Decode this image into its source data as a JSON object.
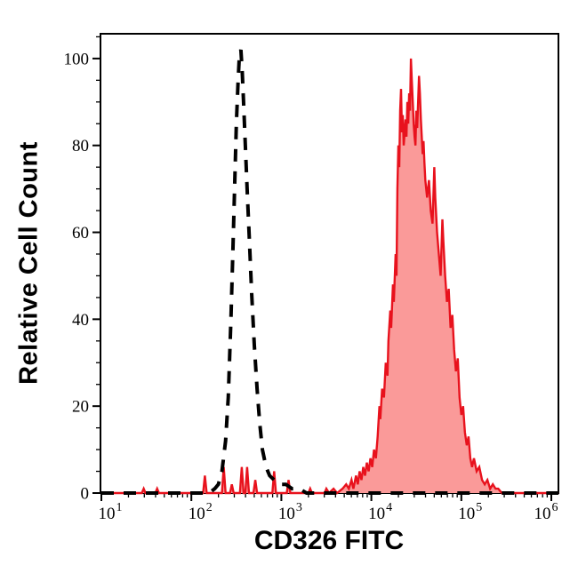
{
  "figure": {
    "ylabel": "Relative Cell Count",
    "xlabel": "CD326 FITC"
  },
  "colors": {
    "background": "#ffffff",
    "frame": "#000000",
    "dashed_curve": "#000000",
    "red_stroke": "#e8121d",
    "red_fill": "#fa9a99"
  },
  "chart_data": {
    "type": "area",
    "subtype": "flow-cytometry-histogram-overlay",
    "title": "",
    "xlabel": "CD326 FITC",
    "ylabel": "Relative Cell Count",
    "x_scale": "log",
    "xlim_log": [
      1,
      6.08
    ],
    "ylim": [
      0,
      105.7
    ],
    "grid": false,
    "legend": "none",
    "x_tick_base": "10",
    "x_tick_exponents": [
      1,
      2,
      3,
      4,
      5,
      6
    ],
    "x_minor_tick_mantissas": [
      2,
      3,
      4,
      5,
      6,
      7,
      8,
      9
    ],
    "y_ticks": [
      0,
      20,
      40,
      60,
      80,
      100
    ],
    "y_tick_labels": [
      "0",
      "20",
      "40",
      "60",
      "80",
      "100"
    ],
    "y_minor_step": 5,
    "series": [
      {
        "key": "red_filled",
        "style": "solid",
        "stroke": "#e8121d",
        "fill": "#fa9a99",
        "stroke_width": 2.4,
        "points_logx_y": [
          [
            1.0,
            0
          ],
          [
            1.45,
            0
          ],
          [
            1.47,
            1
          ],
          [
            1.49,
            0
          ],
          [
            1.6,
            0
          ],
          [
            1.62,
            1
          ],
          [
            1.64,
            0
          ],
          [
            2.13,
            0
          ],
          [
            2.15,
            4
          ],
          [
            2.17,
            0
          ],
          [
            2.34,
            0
          ],
          [
            2.36,
            6
          ],
          [
            2.38,
            0
          ],
          [
            2.43,
            0
          ],
          [
            2.45,
            2
          ],
          [
            2.47,
            0
          ],
          [
            2.54,
            0
          ],
          [
            2.56,
            6
          ],
          [
            2.58,
            0
          ],
          [
            2.6,
            0
          ],
          [
            2.62,
            6
          ],
          [
            2.64,
            0
          ],
          [
            2.69,
            0
          ],
          [
            2.71,
            3
          ],
          [
            2.73,
            0
          ],
          [
            2.9,
            0
          ],
          [
            2.92,
            5
          ],
          [
            2.94,
            0
          ],
          [
            3.06,
            0
          ],
          [
            3.08,
            3
          ],
          [
            3.1,
            0
          ],
          [
            3.3,
            0
          ],
          [
            3.32,
            1
          ],
          [
            3.34,
            0
          ],
          [
            3.48,
            0
          ],
          [
            3.5,
            1
          ],
          [
            3.53,
            0
          ],
          [
            3.58,
            1
          ],
          [
            3.62,
            0
          ],
          [
            3.68,
            1
          ],
          [
            3.72,
            2
          ],
          [
            3.75,
            1
          ],
          [
            3.78,
            3
          ],
          [
            3.8,
            1
          ],
          [
            3.83,
            4
          ],
          [
            3.85,
            2
          ],
          [
            3.87,
            5
          ],
          [
            3.89,
            3
          ],
          [
            3.91,
            6
          ],
          [
            3.93,
            4
          ],
          [
            3.95,
            7
          ],
          [
            3.97,
            5
          ],
          [
            3.99,
            8
          ],
          [
            4.01,
            6
          ],
          [
            4.03,
            10
          ],
          [
            4.05,
            8
          ],
          [
            4.07,
            13
          ],
          [
            4.09,
            20
          ],
          [
            4.1,
            17
          ],
          [
            4.12,
            24
          ],
          [
            4.14,
            22
          ],
          [
            4.16,
            30
          ],
          [
            4.18,
            27
          ],
          [
            4.19,
            35
          ],
          [
            4.21,
            42
          ],
          [
            4.22,
            38
          ],
          [
            4.24,
            48
          ],
          [
            4.25,
            44
          ],
          [
            4.27,
            55
          ],
          [
            4.28,
            50
          ],
          [
            4.29,
            70
          ],
          [
            4.3,
            80
          ],
          [
            4.31,
            75
          ],
          [
            4.32,
            88
          ],
          [
            4.33,
            93
          ],
          [
            4.34,
            83
          ],
          [
            4.35,
            87
          ],
          [
            4.36,
            80
          ],
          [
            4.38,
            86
          ],
          [
            4.39,
            82
          ],
          [
            4.4,
            90
          ],
          [
            4.41,
            85
          ],
          [
            4.42,
            92
          ],
          [
            4.43,
            88
          ],
          [
            4.44,
            100
          ],
          [
            4.45,
            95
          ],
          [
            4.46,
            90
          ],
          [
            4.47,
            85
          ],
          [
            4.48,
            82
          ],
          [
            4.49,
            80
          ],
          [
            4.5,
            88
          ],
          [
            4.51,
            84
          ],
          [
            4.52,
            90
          ],
          [
            4.53,
            96
          ],
          [
            4.54,
            92
          ],
          [
            4.55,
            86
          ],
          [
            4.56,
            82
          ],
          [
            4.57,
            78
          ],
          [
            4.58,
            81
          ],
          [
            4.59,
            76
          ],
          [
            4.6,
            72
          ],
          [
            4.62,
            68
          ],
          [
            4.64,
            72
          ],
          [
            4.66,
            65
          ],
          [
            4.68,
            62
          ],
          [
            4.7,
            75
          ],
          [
            4.71,
            68
          ],
          [
            4.73,
            60
          ],
          [
            4.75,
            55
          ],
          [
            4.77,
            50
          ],
          [
            4.79,
            63
          ],
          [
            4.8,
            58
          ],
          [
            4.82,
            50
          ],
          [
            4.84,
            44
          ],
          [
            4.86,
            47
          ],
          [
            4.88,
            38
          ],
          [
            4.9,
            41
          ],
          [
            4.92,
            33
          ],
          [
            4.94,
            28
          ],
          [
            4.96,
            31
          ],
          [
            4.98,
            22
          ],
          [
            5.0,
            18
          ],
          [
            5.02,
            20
          ],
          [
            5.04,
            14
          ],
          [
            5.06,
            11
          ],
          [
            5.08,
            13
          ],
          [
            5.1,
            8
          ],
          [
            5.12,
            6
          ],
          [
            5.14,
            8
          ],
          [
            5.17,
            5
          ],
          [
            5.2,
            6
          ],
          [
            5.23,
            3
          ],
          [
            5.26,
            2
          ],
          [
            5.29,
            3
          ],
          [
            5.32,
            1
          ],
          [
            5.35,
            2
          ],
          [
            5.38,
            1
          ],
          [
            5.41,
            1
          ],
          [
            5.45,
            0
          ],
          [
            6.08,
            0
          ]
        ]
      },
      {
        "key": "dashed_black",
        "style": "dashed",
        "stroke": "#000000",
        "fill": "none",
        "stroke_width": 4,
        "dash": [
          14,
          11
        ],
        "points_logx_y": [
          [
            1.0,
            0
          ],
          [
            2.2,
            0
          ],
          [
            2.26,
            1
          ],
          [
            2.3,
            2
          ],
          [
            2.34,
            5
          ],
          [
            2.38,
            12
          ],
          [
            2.41,
            22
          ],
          [
            2.44,
            40
          ],
          [
            2.46,
            55
          ],
          [
            2.48,
            70
          ],
          [
            2.5,
            85
          ],
          [
            2.52,
            95
          ],
          [
            2.535,
            101
          ],
          [
            2.55,
            102
          ],
          [
            2.565,
            97
          ],
          [
            2.58,
            90
          ],
          [
            2.6,
            80
          ],
          [
            2.62,
            70
          ],
          [
            2.645,
            58
          ],
          [
            2.67,
            46
          ],
          [
            2.7,
            34
          ],
          [
            2.73,
            24
          ],
          [
            2.76,
            16
          ],
          [
            2.79,
            10
          ],
          [
            2.83,
            6
          ],
          [
            2.87,
            4
          ],
          [
            2.92,
            3
          ],
          [
            2.98,
            2
          ],
          [
            3.05,
            2
          ],
          [
            3.12,
            1
          ],
          [
            3.2,
            1
          ],
          [
            3.28,
            0
          ],
          [
            6.08,
            0
          ]
        ]
      }
    ]
  }
}
